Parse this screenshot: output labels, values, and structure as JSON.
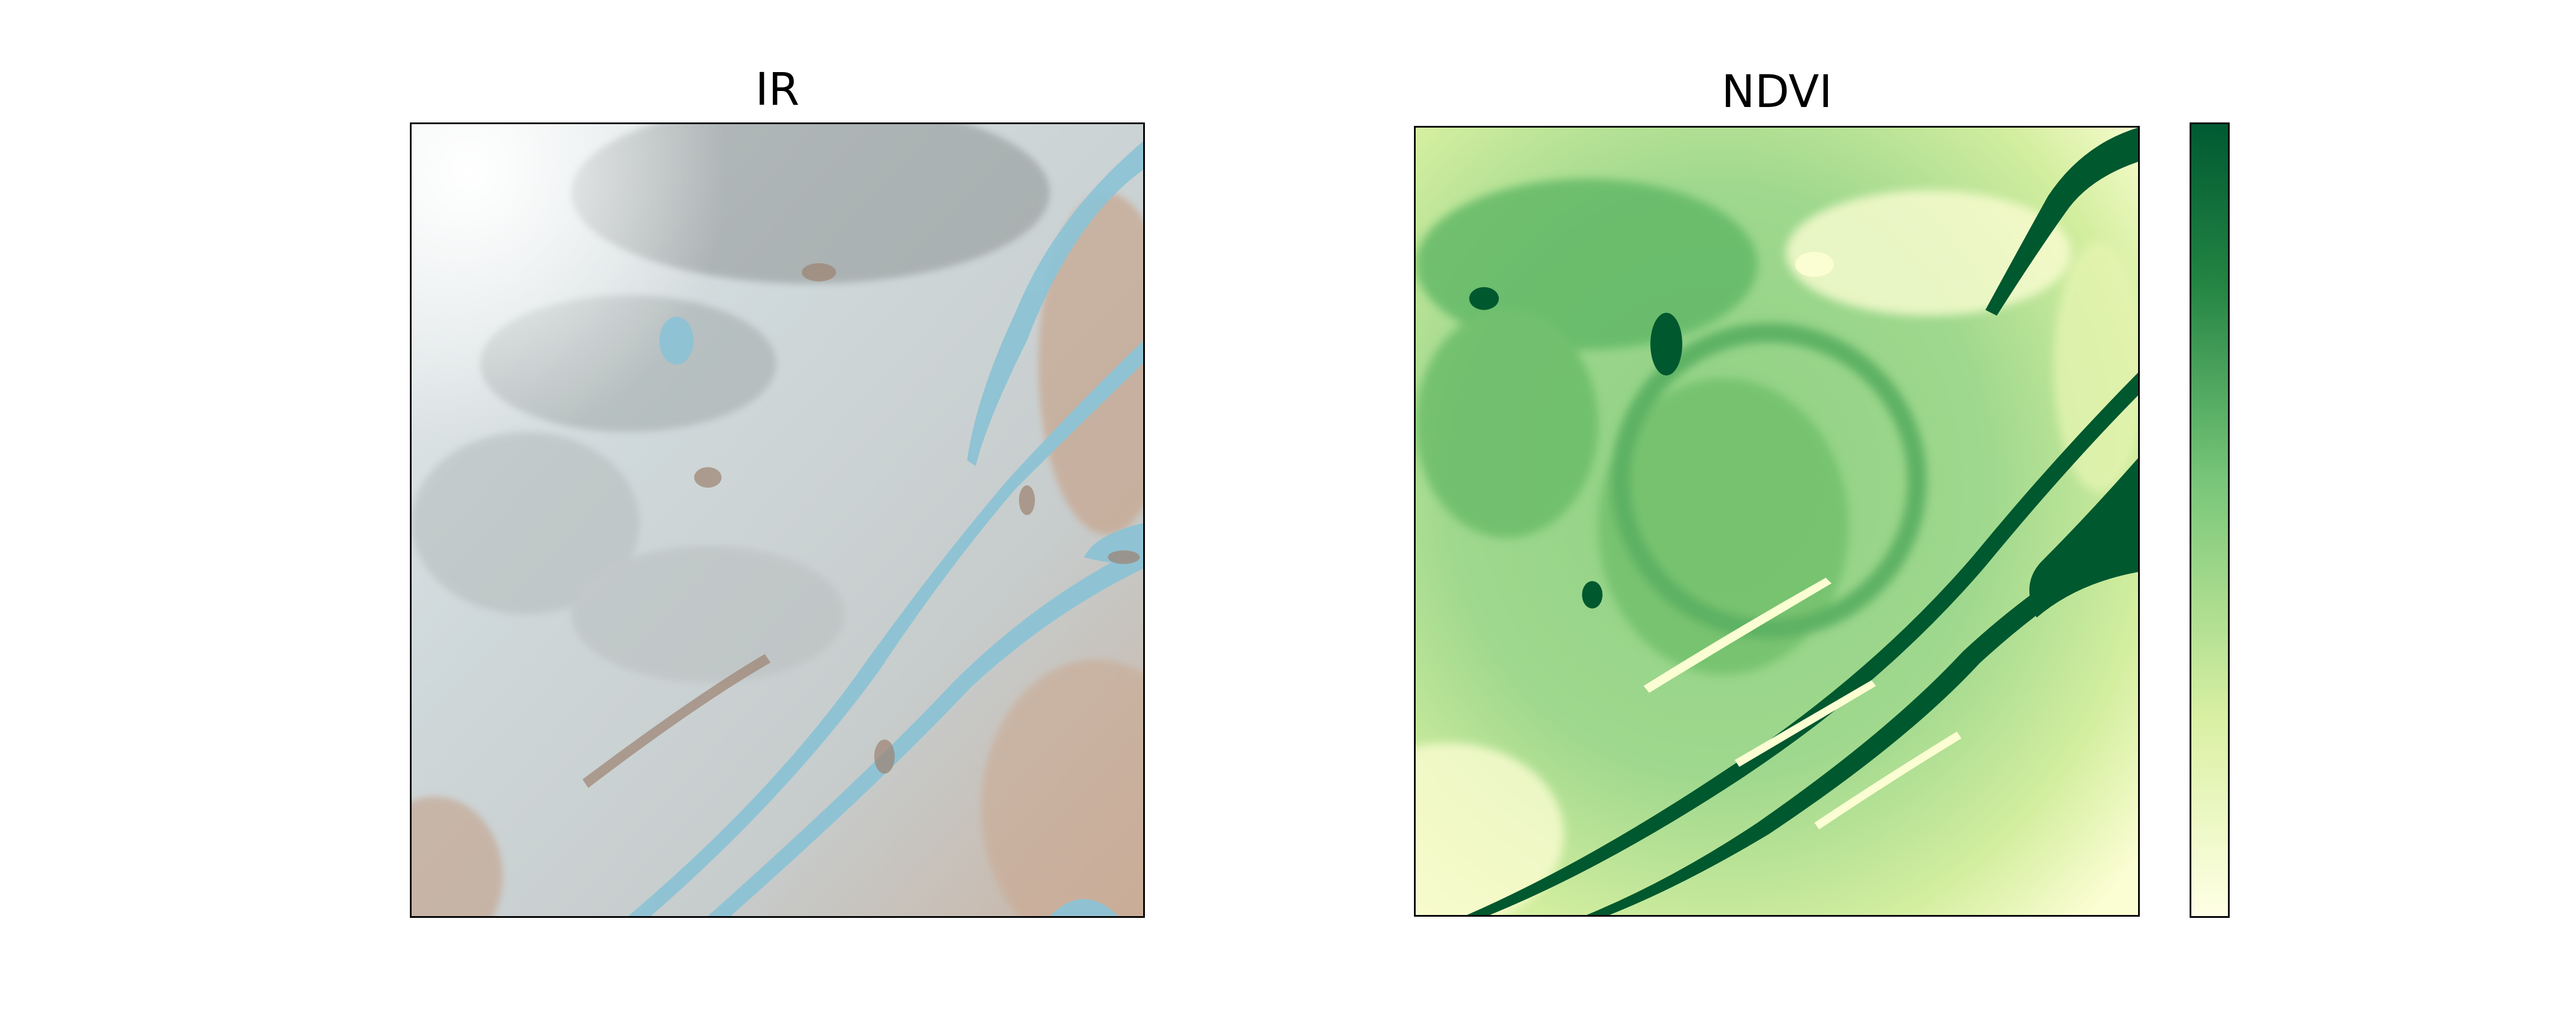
{
  "panels": {
    "ir": {
      "title": "IR"
    },
    "ndvi": {
      "title": "NDVI"
    }
  },
  "colorbar": {
    "colormap": "YlGn",
    "colors": [
      "#ffffe5",
      "#d9f0a3",
      "#78c679",
      "#238443",
      "#005a32"
    ],
    "tick_labels_visible": false
  },
  "colors": {
    "ir_ground": "#c9d2d3",
    "ir_water": "#89bfd3",
    "ir_soil": "#c8a58a",
    "ndvi_high": "#005a32",
    "ndvi_low": "#ffffe5"
  }
}
